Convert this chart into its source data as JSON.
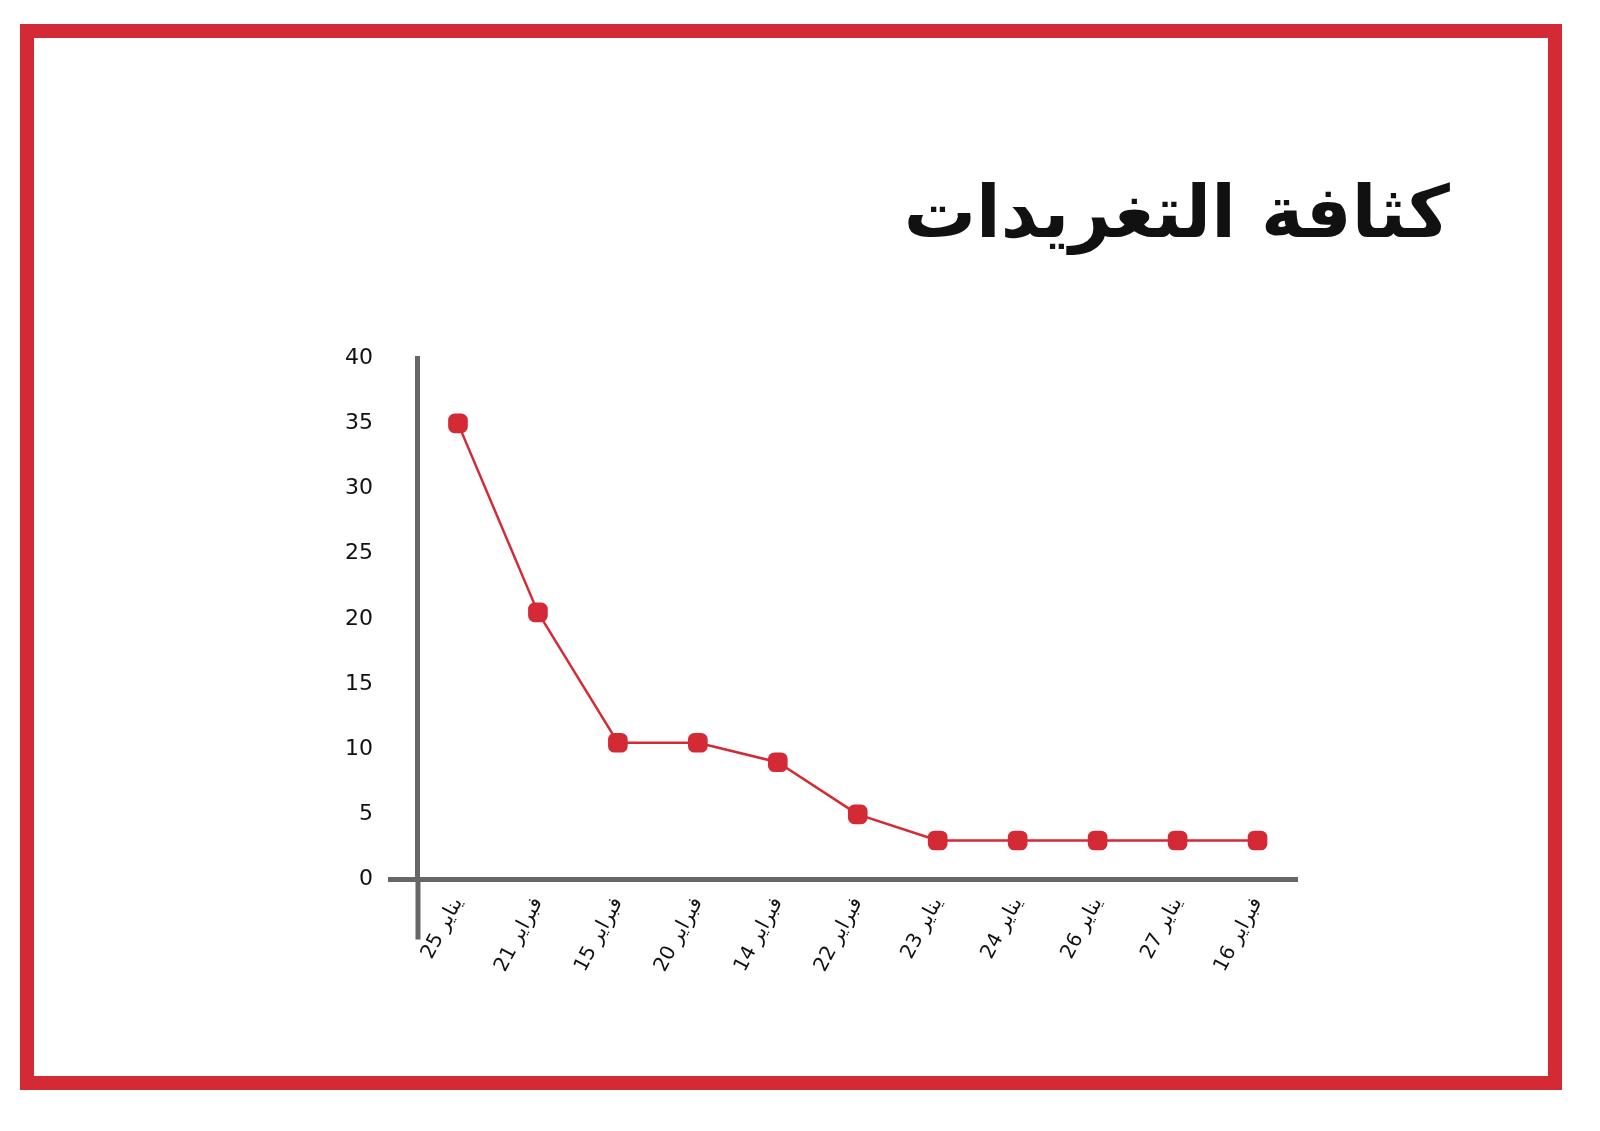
{
  "chart_data": {
    "type": "line",
    "title": "كثافة التغريدات",
    "categories": [
      "25 يناير",
      "21 فبراير",
      "15 فبراير",
      "20 فبراير",
      "14 فبراير",
      "22 فبراير",
      "23 يناير",
      "24 يناير",
      "26 يناير",
      "27 يناير",
      "16 فبراير"
    ],
    "series": [
      {
        "color": "#d42a36",
        "values": [
          35,
          20.5,
          10.5,
          10.5,
          9,
          5,
          3,
          3,
          3,
          3,
          3
        ]
      }
    ],
    "ylim": [
      0,
      40
    ],
    "yticks": [
      0,
      5,
      10,
      15,
      20,
      25,
      30,
      35,
      40
    ],
    "grid": false,
    "legend": false,
    "marker": "square",
    "line_style": "solid"
  }
}
